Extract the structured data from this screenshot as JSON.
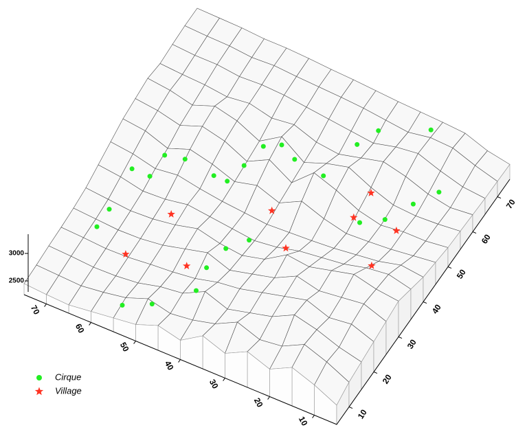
{
  "chart_data": {
    "type": "surface3d",
    "grid_x": [
      5,
      10,
      15,
      20,
      25,
      30,
      35,
      40,
      45,
      50,
      55,
      60,
      65,
      70,
      75
    ],
    "grid_y": [
      5,
      10,
      15,
      20,
      25,
      30,
      35,
      40,
      45,
      50,
      55,
      60,
      65,
      70,
      75
    ],
    "z": [
      [
        2600,
        2800,
        2950,
        2750,
        2900,
        2700,
        2850,
        2600,
        2700,
        2550,
        2500,
        2450,
        2400,
        2420,
        2450
      ],
      [
        2700,
        2900,
        3050,
        2850,
        2800,
        2950,
        2750,
        2650,
        2600,
        2700,
        2550,
        2480,
        2430,
        2450,
        2470
      ],
      [
        2750,
        2850,
        3000,
        3100,
        2900,
        2800,
        2700,
        2850,
        2650,
        2600,
        2500,
        2460,
        2450,
        2480,
        2500
      ],
      [
        2800,
        2950,
        2900,
        3050,
        2950,
        2850,
        2750,
        2700,
        2600,
        2550,
        2520,
        2480,
        2470,
        2500,
        2520
      ],
      [
        2850,
        3000,
        2950,
        2900,
        3000,
        2800,
        2700,
        2600,
        2750,
        2650,
        2550,
        2500,
        2490,
        2520,
        2550
      ],
      [
        2900,
        2950,
        3050,
        2950,
        2850,
        2900,
        2650,
        2550,
        2600,
        2700,
        2600,
        2540,
        2520,
        2560,
        2600
      ],
      [
        2800,
        2900,
        2850,
        2750,
        2700,
        2650,
        2550,
        2500,
        2550,
        2600,
        2650,
        2580,
        2560,
        2650,
        2700
      ],
      [
        2700,
        2750,
        2650,
        2600,
        2550,
        2520,
        2500,
        2480,
        2520,
        2560,
        2620,
        2700,
        2650,
        2750,
        2800
      ],
      [
        2650,
        2600,
        2550,
        2520,
        2500,
        2600,
        2750,
        2550,
        2700,
        2600,
        2750,
        2850,
        2700,
        2850,
        2900
      ],
      [
        2600,
        2550,
        2550,
        2500,
        2600,
        2800,
        2950,
        2600,
        2850,
        2650,
        2850,
        2950,
        2800,
        2900,
        2950
      ],
      [
        2580,
        2540,
        2520,
        2550,
        2700,
        2900,
        2800,
        2650,
        2950,
        2700,
        2900,
        3000,
        2850,
        2950,
        3000
      ],
      [
        2560,
        2520,
        2600,
        2750,
        2850,
        2750,
        2650,
        2700,
        2850,
        2800,
        2900,
        2850,
        2900,
        2920,
        2950
      ],
      [
        2540,
        2580,
        2700,
        2850,
        2800,
        2700,
        2750,
        2800,
        2850,
        2900,
        2920,
        2900,
        2950,
        2950,
        2980
      ],
      [
        2530,
        2650,
        2800,
        2820,
        2750,
        2800,
        2850,
        2880,
        2900,
        2920,
        2950,
        2930,
        2970,
        2980,
        3000
      ],
      [
        2520,
        2600,
        2750,
        2780,
        2800,
        2820,
        2850,
        2880,
        2900,
        2930,
        2950,
        2950,
        2980,
        2990,
        3000
      ]
    ],
    "xlim": [
      5,
      75
    ],
    "ylim": [
      5,
      75
    ],
    "zlim": [
      2250,
      3350
    ],
    "xticks": [
      10,
      20,
      30,
      40,
      50,
      60,
      70
    ],
    "yticks": [
      10,
      20,
      30,
      40,
      50,
      60,
      70
    ],
    "zticks": [
      2500,
      3000
    ],
    "surface_color": "#f8f8f8",
    "mesh_color": "#4a4a4a",
    "legend": "bottom-left",
    "series": [
      {
        "name": "Cirque",
        "color": "#22ee22",
        "marker": "circle",
        "x": [
          68,
          64,
          64,
          60,
          53,
          50,
          49,
          48,
          45,
          41,
          34,
          32,
          30,
          21,
          12,
          15,
          18,
          22,
          39,
          42,
          43,
          42,
          48,
          53,
          67,
          67
        ],
        "y": [
          36,
          36,
          42,
          43,
          42,
          42,
          47,
          53,
          55,
          53,
          52,
          62,
          67,
          72,
          59,
          54,
          48,
          45,
          31,
          27,
          21,
          15,
          8,
          5,
          25,
          20
        ],
        "z": [
          2800,
          2800,
          2800,
          2800,
          2800,
          2800,
          2800,
          2800,
          2800,
          2800,
          2800,
          2800,
          2800,
          2800,
          2800,
          2800,
          2800,
          2800,
          2800,
          2800,
          2800,
          2800,
          2800,
          2800,
          2800,
          2800
        ]
      },
      {
        "name": "Village",
        "color": "#ff3322",
        "marker": "star",
        "x": [
          60,
          57,
          48,
          40,
          33,
          25,
          25,
          16,
          16
        ],
        "y": [
          19,
          32,
          22,
          42,
          35,
          48,
          55,
          39,
          49
        ],
        "z": [
          2600,
          2600,
          2600,
          2600,
          2600,
          2600,
          2600,
          2600,
          2600
        ]
      }
    ]
  }
}
